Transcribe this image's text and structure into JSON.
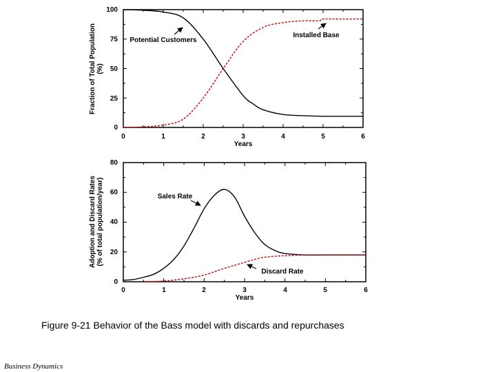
{
  "caption": "Figure 9-21  Behavior of the Bass model with discards and repurchases",
  "footer": "Business Dynamics",
  "colors": {
    "solid": "#000000",
    "dashed": "#cc0000"
  },
  "chart_data": [
    {
      "type": "line",
      "xlabel": "Years",
      "ylabel_line1": "Fraction of Total Population",
      "ylabel_line2": "(%)",
      "xlim": [
        0,
        6
      ],
      "ylim": [
        0,
        100
      ],
      "xticks": [
        "0",
        "1",
        "2",
        "3",
        "4",
        "5",
        "6"
      ],
      "yticks": [
        "0",
        "25",
        "50",
        "75",
        "100"
      ],
      "series": [
        {
          "name": "Potential Customers",
          "style": "solid",
          "x": [
            0,
            0.5,
            1.0,
            1.5,
            2.0,
            2.5,
            3.0,
            3.25,
            3.5,
            4.0,
            4.5,
            5.0,
            5.5,
            6.0
          ],
          "y": [
            100,
            99.5,
            98,
            93,
            75,
            50,
            27,
            20,
            15,
            11,
            10,
            9.5,
            9.5,
            9.5
          ]
        },
        {
          "name": "Installed Base",
          "style": "dashed",
          "x": [
            0,
            0.5,
            1.0,
            1.5,
            2.0,
            2.5,
            3.0,
            3.5,
            4.0,
            4.5,
            4.9,
            5.0,
            5.5,
            6.0
          ],
          "y": [
            0,
            0.5,
            2,
            7,
            25,
            50,
            73,
            85,
            89,
            90.5,
            90.5,
            92,
            92,
            92
          ]
        }
      ]
    },
    {
      "type": "line",
      "xlabel": "Years",
      "ylabel_line1": "Adoption and Discard Rates",
      "ylabel_line2": "(% of total population/year)",
      "xlim": [
        0,
        6
      ],
      "ylim": [
        0,
        80
      ],
      "xticks": [
        "0",
        "1",
        "2",
        "3",
        "4",
        "5",
        "6"
      ],
      "yticks": [
        "0",
        "20",
        "40",
        "60",
        "80"
      ],
      "series": [
        {
          "name": "Sales Rate",
          "style": "solid",
          "x": [
            0,
            0.25,
            0.5,
            0.75,
            1.0,
            1.25,
            1.5,
            1.75,
            2.0,
            2.25,
            2.5,
            2.75,
            3.0,
            3.25,
            3.5,
            3.75,
            4.0,
            4.5,
            5.0,
            5.5,
            6.0
          ],
          "y": [
            1,
            1.5,
            3,
            5,
            9,
            15,
            24,
            36,
            49,
            58,
            62,
            57,
            44,
            33,
            25,
            21,
            19,
            18,
            18,
            18,
            18
          ]
        },
        {
          "name": "Discard Rate",
          "style": "dashed",
          "x": [
            0.5,
            1.0,
            1.5,
            2.0,
            2.5,
            3.0,
            3.25,
            3.5,
            4.0,
            4.5,
            5.0,
            5.5,
            6.0
          ],
          "y": [
            0,
            0.5,
            2,
            4.5,
            9,
            13,
            15,
            16.5,
            17.5,
            18,
            18,
            18,
            18
          ]
        }
      ]
    }
  ]
}
